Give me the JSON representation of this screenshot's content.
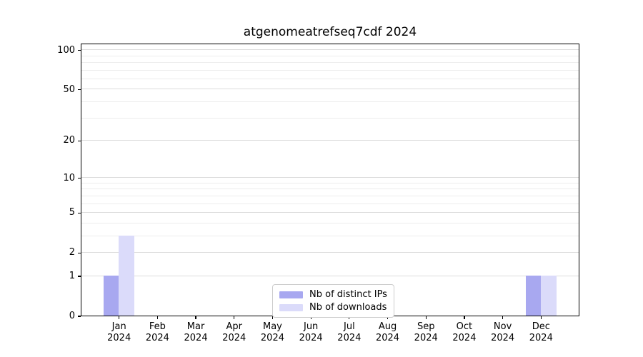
{
  "chart_data": {
    "type": "bar",
    "title": "atgenomeatrefseq7cdf 2024",
    "scale": "log1p",
    "categories": [
      "Jan",
      "Feb",
      "Mar",
      "Apr",
      "May",
      "Jun",
      "Jul",
      "Aug",
      "Sep",
      "Oct",
      "Nov",
      "Dec"
    ],
    "tick_year": "2024",
    "series": [
      {
        "name": "Nb of distinct IPs",
        "color": "#a8a8f0",
        "values": [
          1,
          0,
          0,
          0,
          0,
          0,
          0,
          0,
          0,
          0,
          0,
          1
        ]
      },
      {
        "name": "Nb of downloads",
        "color": "#dbdbfa",
        "values": [
          3,
          0,
          0,
          0,
          0,
          0,
          0,
          0,
          0,
          0,
          0,
          1
        ]
      }
    ],
    "yticks": [
      100,
      50,
      20,
      10,
      5,
      2,
      1,
      0
    ],
    "minor_gridlines": [
      90,
      80,
      70,
      60,
      40,
      30,
      9,
      8,
      7,
      6,
      4,
      3
    ],
    "ylim": [
      0,
      113
    ],
    "grid": "horizontal-only",
    "legend_position": "bottom-center"
  },
  "colors": {
    "major_grid": "#dcdcdc",
    "minor_grid": "#ededed",
    "axis": "#000000",
    "legend_border": "#cccccc",
    "background": "#ffffff"
  }
}
